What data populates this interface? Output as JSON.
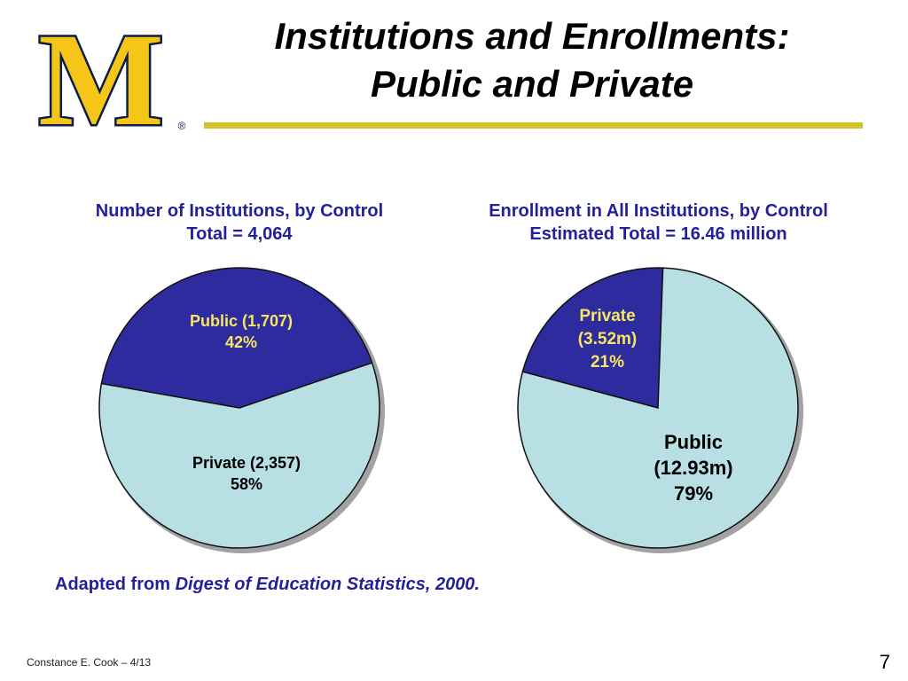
{
  "header": {
    "title_line1": "Institutions and Enrollments:",
    "title_line2": "Public and Private",
    "logo_letter": "M",
    "logo_mark": "®"
  },
  "colors": {
    "dark_slice": "#2e2b9e",
    "light_slice": "#b8dfe3",
    "outline": "#111111",
    "title_blue": "#24209a",
    "accent_yellow": "#d4c229",
    "logo_blue": "#0b1f4b",
    "logo_maize": "#f5c518"
  },
  "chart_data": [
    {
      "type": "pie",
      "title": "Number of Institutions, by Control",
      "subtitle": "Total = 4,064",
      "slices": [
        {
          "name": "Public",
          "value": 1707,
          "percent": 42,
          "label_line1": "Public (1,707)",
          "label_line2": "42%",
          "color": "#2e2b9e",
          "label_color": "#f5e663"
        },
        {
          "name": "Private",
          "value": 2357,
          "percent": 58,
          "label_line1": "Private (2,357)",
          "label_line2": "58%",
          "color": "#b8dfe3",
          "label_color": "#000000"
        }
      ]
    },
    {
      "type": "pie",
      "title": "Enrollment in All Institutions, by Control",
      "subtitle": "Estimated Total = 16.46 million",
      "slices": [
        {
          "name": "Private",
          "value": 3.52,
          "percent": 21,
          "label_line1": "Private",
          "label_line2": "(3.52m)",
          "label_line3": "21%",
          "color": "#2e2b9e",
          "label_color": "#f5e663"
        },
        {
          "name": "Public",
          "value": 12.93,
          "percent": 79,
          "label_line1": "Public",
          "label_line2": "(12.93m)",
          "label_line3": "79%",
          "color": "#b8dfe3",
          "label_color": "#000000"
        }
      ]
    }
  ],
  "source": {
    "prefix": "Adapted from ",
    "publication": "Digest of Education Statistics, 2000."
  },
  "footer": {
    "author": "Constance E. Cook – 4/13",
    "page_number": "7"
  }
}
